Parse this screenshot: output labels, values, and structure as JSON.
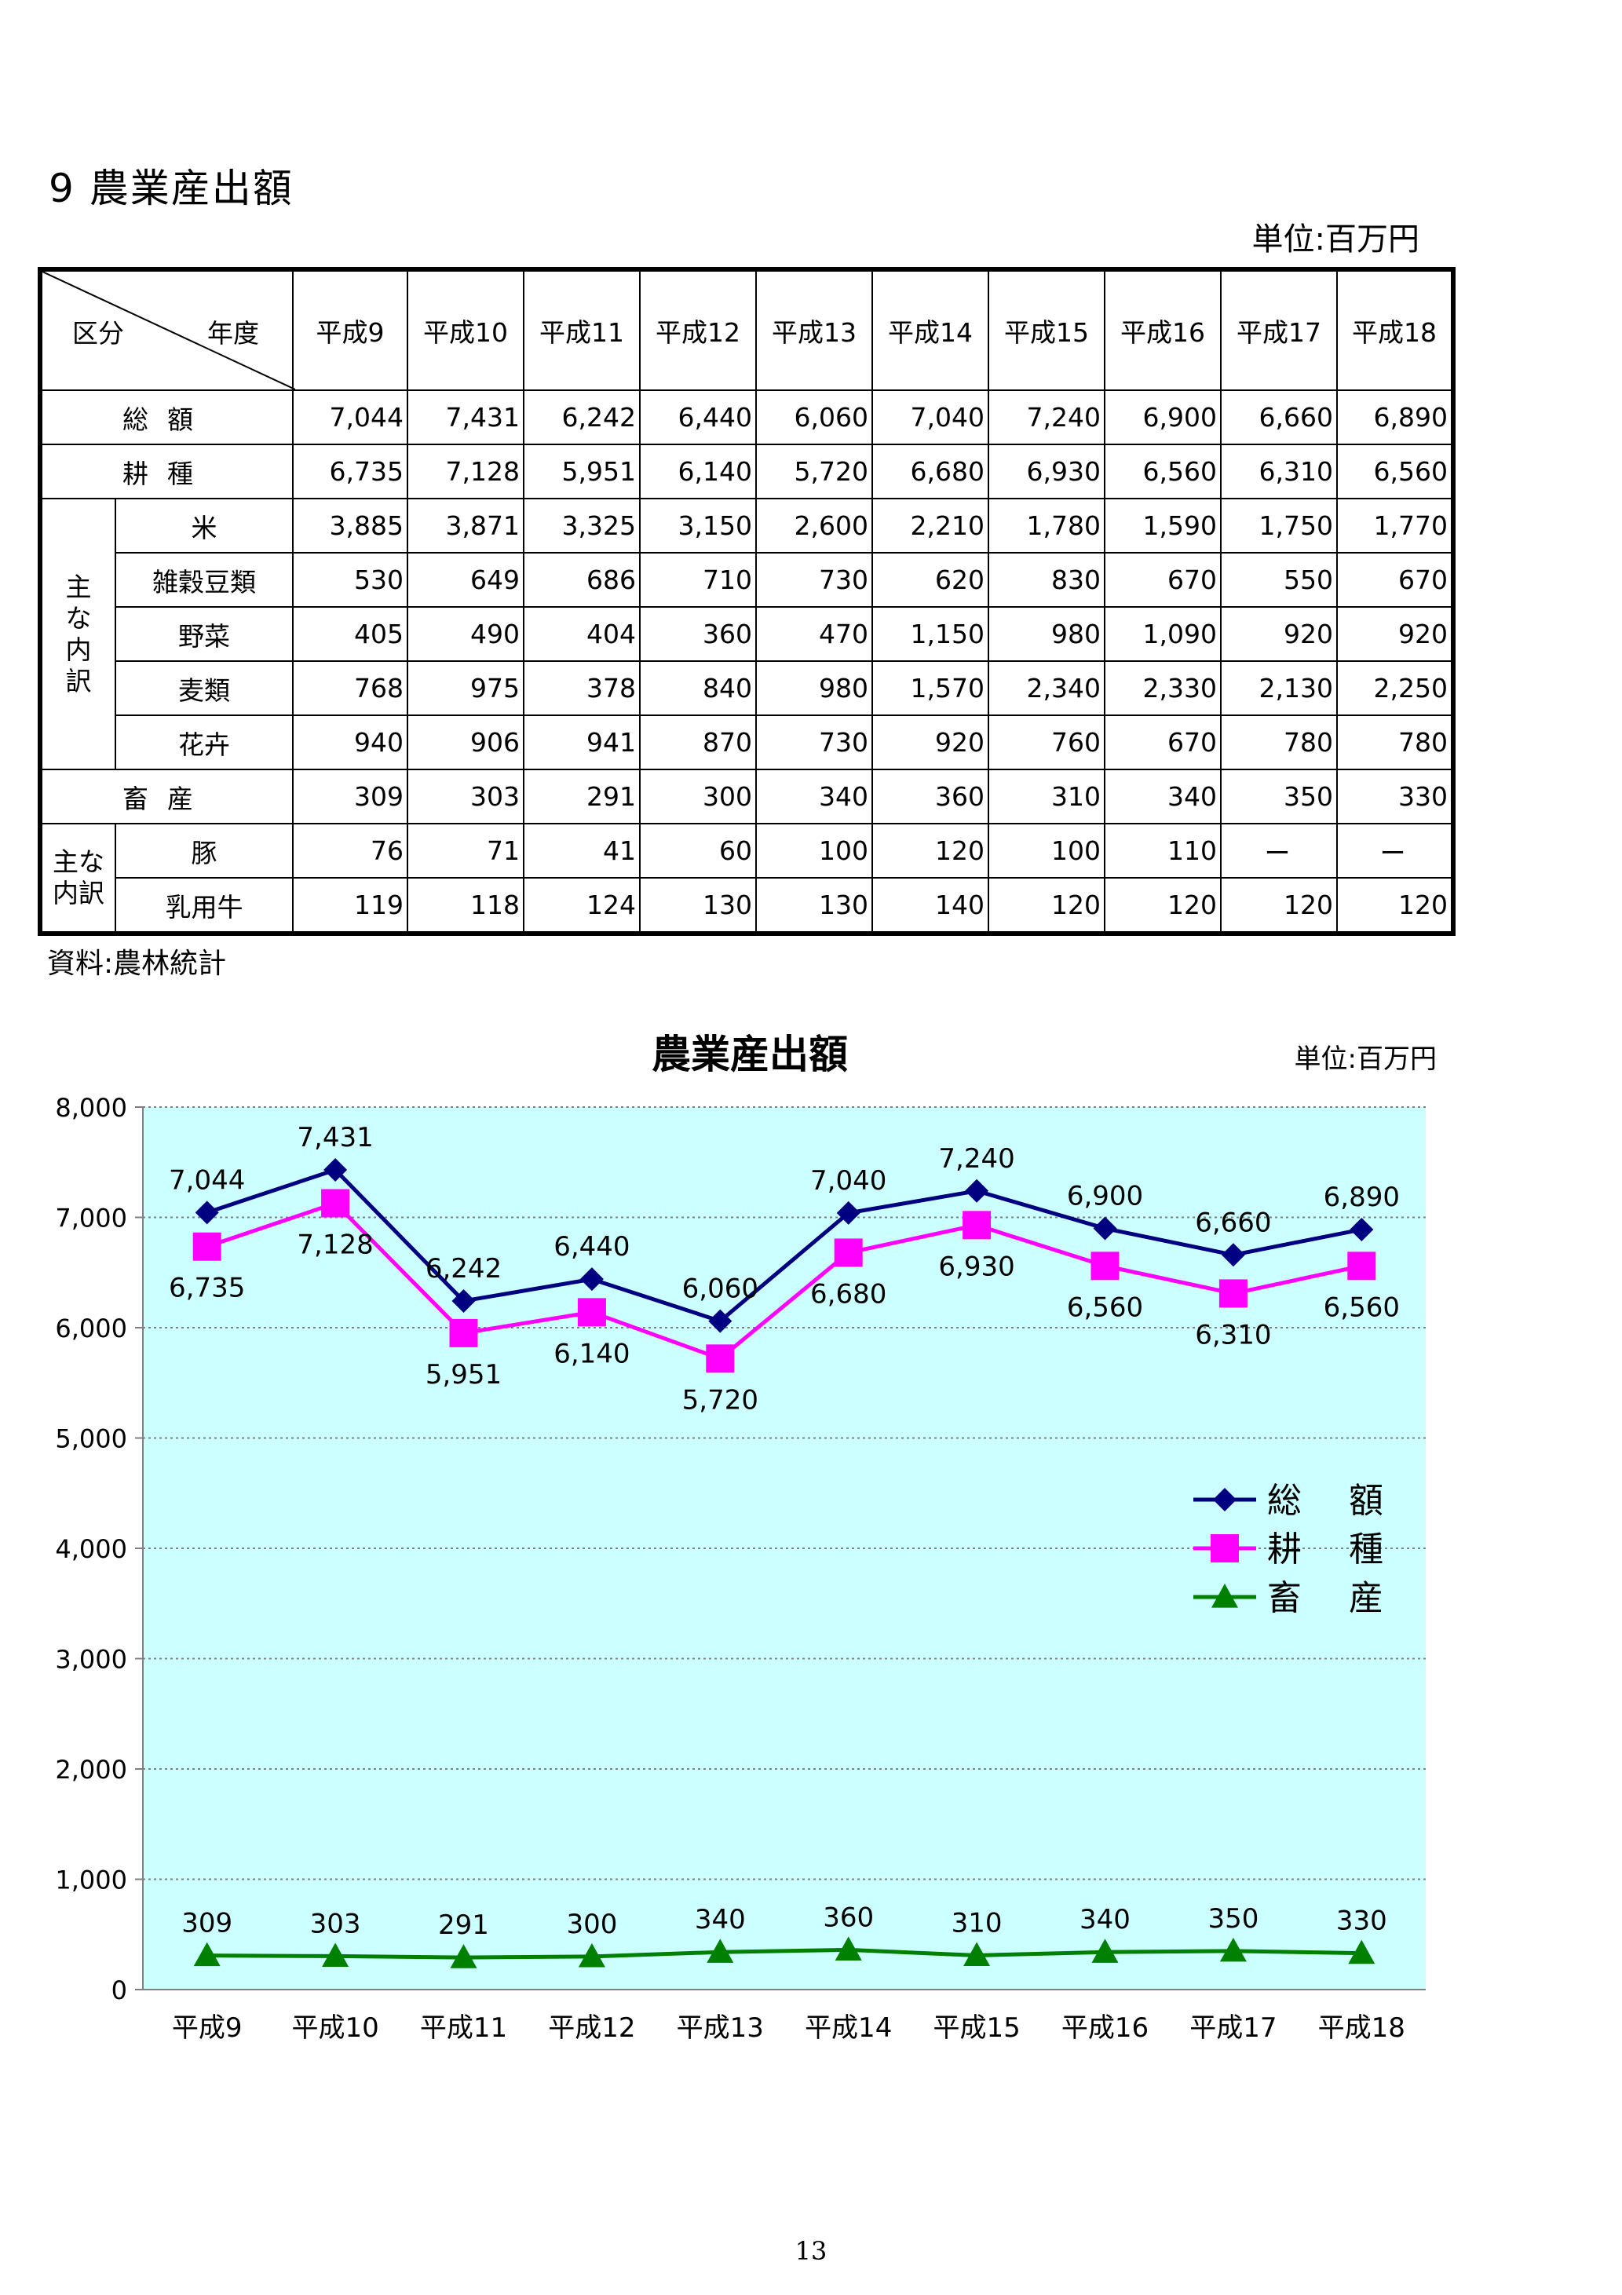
{
  "page_title": "9 農業産出額",
  "unit_label": "単位:百万円",
  "table": {
    "corner_label_left": "区分",
    "corner_label_right": "年度",
    "years": [
      "平成9",
      "平成10",
      "平成11",
      "平成12",
      "平成13",
      "平成14",
      "平成15",
      "平成16",
      "平成17",
      "平成18"
    ],
    "group_crop_label": "主な内訳",
    "group_livestock_label": "主な内訳",
    "rows": [
      {
        "label": "総額",
        "values": [
          "7,044",
          "7,431",
          "6,242",
          "6,440",
          "6,060",
          "7,040",
          "7,240",
          "6,900",
          "6,660",
          "6,890"
        ]
      },
      {
        "label": "耕種",
        "values": [
          "6,735",
          "7,128",
          "5,951",
          "6,140",
          "5,720",
          "6,680",
          "6,930",
          "6,560",
          "6,310",
          "6,560"
        ]
      },
      {
        "label": "米",
        "values": [
          "3,885",
          "3,871",
          "3,325",
          "3,150",
          "2,600",
          "2,210",
          "1,780",
          "1,590",
          "1,750",
          "1,770"
        ]
      },
      {
        "label": "雑穀豆類",
        "values": [
          "530",
          "649",
          "686",
          "710",
          "730",
          "620",
          "830",
          "670",
          "550",
          "670"
        ]
      },
      {
        "label": "野菜",
        "values": [
          "405",
          "490",
          "404",
          "360",
          "470",
          "1,150",
          "980",
          "1,090",
          "920",
          "920"
        ]
      },
      {
        "label": "麦類",
        "values": [
          "768",
          "975",
          "378",
          "840",
          "980",
          "1,570",
          "2,340",
          "2,330",
          "2,130",
          "2,250"
        ]
      },
      {
        "label": "花卉",
        "values": [
          "940",
          "906",
          "941",
          "870",
          "730",
          "920",
          "760",
          "670",
          "780",
          "780"
        ]
      },
      {
        "label": "畜産",
        "values": [
          "309",
          "303",
          "291",
          "300",
          "340",
          "360",
          "310",
          "340",
          "350",
          "330"
        ]
      },
      {
        "label": "豚",
        "values": [
          "76",
          "71",
          "41",
          "60",
          "100",
          "120",
          "100",
          "110",
          "ー",
          "ー"
        ]
      },
      {
        "label": "乳用牛",
        "values": [
          "119",
          "118",
          "124",
          "130",
          "130",
          "140",
          "120",
          "120",
          "120",
          "120"
        ]
      }
    ]
  },
  "source_note": "資料:農林統計",
  "page_number": "13",
  "chart_data": {
    "type": "line",
    "title": "農業産出額",
    "unit_label": "単位:百万円",
    "categories": [
      "平成9",
      "平成10",
      "平成11",
      "平成12",
      "平成13",
      "平成14",
      "平成15",
      "平成16",
      "平成17",
      "平成18"
    ],
    "ylim": [
      0,
      8000
    ],
    "y_ticks": [
      "0",
      "1,000",
      "2,000",
      "3,000",
      "4,000",
      "5,000",
      "6,000",
      "7,000",
      "8,000"
    ],
    "grid": true,
    "legend_position": "right",
    "plot_background": "#ccffff",
    "series": [
      {
        "name": "総 額",
        "color": "#000080",
        "marker": "diamond",
        "values": [
          7044,
          7431,
          6242,
          6440,
          6060,
          7040,
          7240,
          6900,
          6660,
          6890
        ],
        "labels": [
          "7,044",
          "7,431",
          "6,242",
          "6,440",
          "6,060",
          "7,040",
          "7,240",
          "6,900",
          "6,660",
          "6,890"
        ]
      },
      {
        "name": "耕 種",
        "color": "#ff00ff",
        "marker": "square",
        "values": [
          6735,
          7128,
          5951,
          6140,
          5720,
          6680,
          6930,
          6560,
          6310,
          6560
        ],
        "labels": [
          "6,735",
          "7,128",
          "5,951",
          "6,140",
          "5,720",
          "6,680",
          "6,930",
          "6,560",
          "6,310",
          "6,560"
        ]
      },
      {
        "name": "畜 産",
        "color": "#008000",
        "marker": "triangle",
        "values": [
          309,
          303,
          291,
          300,
          340,
          360,
          310,
          340,
          350,
          330
        ],
        "labels": [
          "309",
          "303",
          "291",
          "300",
          "340",
          "360",
          "310",
          "340",
          "350",
          "330"
        ]
      }
    ]
  }
}
